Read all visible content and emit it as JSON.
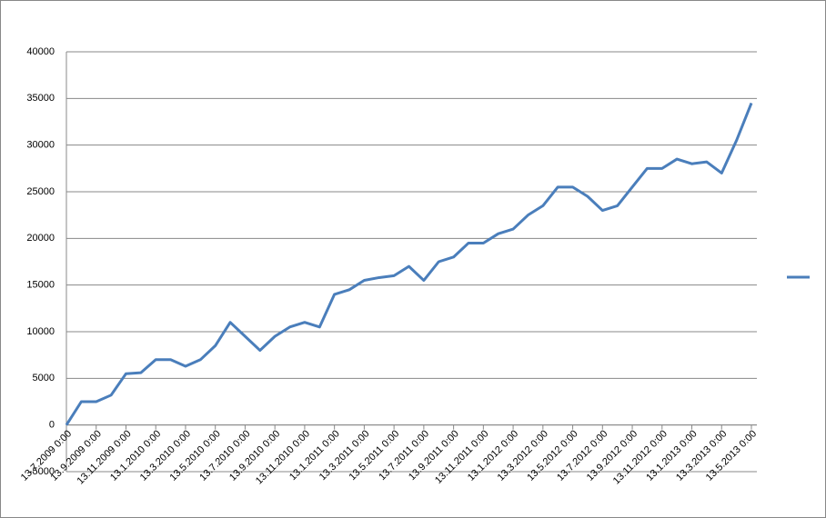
{
  "chart_data": {
    "type": "line",
    "categories": [
      "13.7.2009 0:00",
      null,
      "13.9.2009 0:00",
      null,
      "13.11.2009 0:00",
      null,
      "13.1.2010 0:00",
      null,
      "13.3.2010 0:00",
      null,
      "13.5.2010 0:00",
      null,
      "13.7.2010 0:00",
      null,
      "13.9.2010 0:00",
      null,
      "13.11.2010 0:00",
      null,
      "13.1.2011 0:00",
      null,
      "13.3.2011 0:00",
      null,
      "13.5.2011 0:00",
      null,
      "13.7.2011 0:00",
      null,
      "13.9.2011 0:00",
      null,
      "13.11.2011 0:00",
      null,
      "13.1.2012 0:00",
      null,
      "13.3.2012 0:00",
      null,
      "13.5.2012 0:00",
      null,
      "13.7.2012 0:00",
      null,
      "13.9.2012 0:00",
      null,
      "13.11.2012 0:00",
      null,
      "13.1.2013 0:00",
      null,
      "13.3.2013 0:00",
      null,
      "13.5.2013 0:00"
    ],
    "series": [
      {
        "color": "#4a7ebb",
        "values": [
          0,
          2500,
          2500,
          3200,
          5500,
          5600,
          7000,
          7000,
          6300,
          7000,
          8500,
          11000,
          9500,
          8000,
          9500,
          10500,
          11000,
          10500,
          14000,
          14500,
          15500,
          15800,
          16000,
          17000,
          15500,
          17500,
          18000,
          19500,
          19500,
          20500,
          21000,
          22500,
          23500,
          25500,
          25500,
          24500,
          23000,
          23500,
          25500,
          27500,
          27500,
          28500,
          28000,
          28200,
          27000,
          30500,
          34500
        ]
      }
    ],
    "ylim": [
      -5000,
      40000
    ],
    "yticks": [
      -5000,
      0,
      5000,
      10000,
      15000,
      20000,
      25000,
      30000,
      35000,
      40000
    ],
    "grid": true,
    "legend": "right"
  }
}
